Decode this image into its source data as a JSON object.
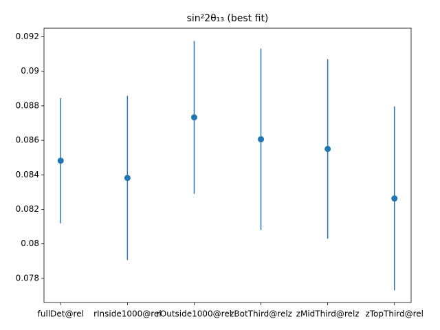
{
  "chart_data": {
    "type": "errorbar",
    "title": "sin²2θ₁₃ (best fit)",
    "categories": [
      "fullDet@rel",
      "rInside1000@rel",
      "rOutside1000@rel",
      "zBotThird@relz",
      "zMidThird@relz",
      "zTopThird@rel"
    ],
    "values": [
      0.08482,
      0.08382,
      0.08733,
      0.08606,
      0.0855,
      0.08263
    ],
    "errors": [
      0.00363,
      0.00476,
      0.00443,
      0.00526,
      0.0052,
      0.00533
    ],
    "color": "#1f77b4",
    "ylim": [
      0.0766,
      0.0925
    ],
    "yticks": [
      0.078,
      0.08,
      0.082,
      0.084,
      0.086,
      0.088,
      0.09,
      0.092
    ],
    "grid": false
  }
}
